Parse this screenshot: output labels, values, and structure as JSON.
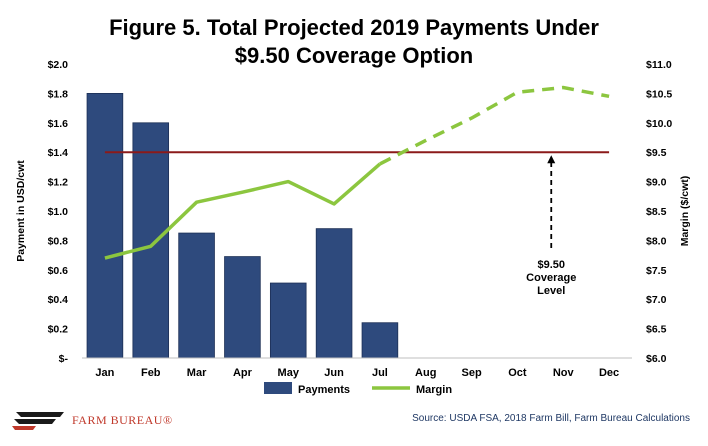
{
  "title_line1": "Figure 5. Total Projected 2019 Payments Under",
  "title_line2": "$9.50 Coverage Option",
  "logo_text": "FARM BUREAU®",
  "source": "Source: USDA FSA, 2018 Farm Bill, Farm Bureau Calculations",
  "colors": {
    "bar": "#2e4a7d",
    "margin_line": "#8cc63f",
    "coverage_line": "#8b1a1a",
    "logo": "#c0392b"
  },
  "chart_data": {
    "type": "bar+line",
    "categories": [
      "Jan",
      "Feb",
      "Mar",
      "Apr",
      "May",
      "Jun",
      "Jul",
      "Aug",
      "Sep",
      "Oct",
      "Nov",
      "Dec"
    ],
    "series": [
      {
        "name": "Payments",
        "type": "bar",
        "axis": "left",
        "values": [
          1.8,
          1.6,
          0.85,
          0.69,
          0.51,
          0.88,
          0.24,
          null,
          null,
          null,
          null,
          null
        ]
      },
      {
        "name": "Margin",
        "type": "line",
        "axis": "right",
        "values": [
          7.7,
          7.9,
          8.65,
          8.82,
          9.0,
          8.62,
          9.3,
          9.7,
          10.08,
          10.52,
          10.6,
          10.45
        ],
        "solid_through_index": 6
      }
    ],
    "coverage_level": 9.5,
    "annotation": "$9.50\nCoverage\nLevel",
    "ylabel_left": "Payment in USD/cwt",
    "ylabel_right": "Margin ($/cwt)",
    "ylim_left": [
      0,
      2.0
    ],
    "ylim_right": [
      6.0,
      11.0
    ],
    "yticks_left": [
      "$-",
      "$0.2",
      "$0.4",
      "$0.6",
      "$0.8",
      "$1.0",
      "$1.2",
      "$1.4",
      "$1.6",
      "$1.8",
      "$2.0"
    ],
    "yticks_right": [
      "$6.0",
      "$6.5",
      "$7.0",
      "$7.5",
      "$8.0",
      "$8.5",
      "$9.0",
      "$9.5",
      "$10.0",
      "$10.5",
      "$11.0"
    ],
    "legend": [
      "Payments",
      "Margin"
    ],
    "legend_position": "bottom",
    "grid": false
  }
}
